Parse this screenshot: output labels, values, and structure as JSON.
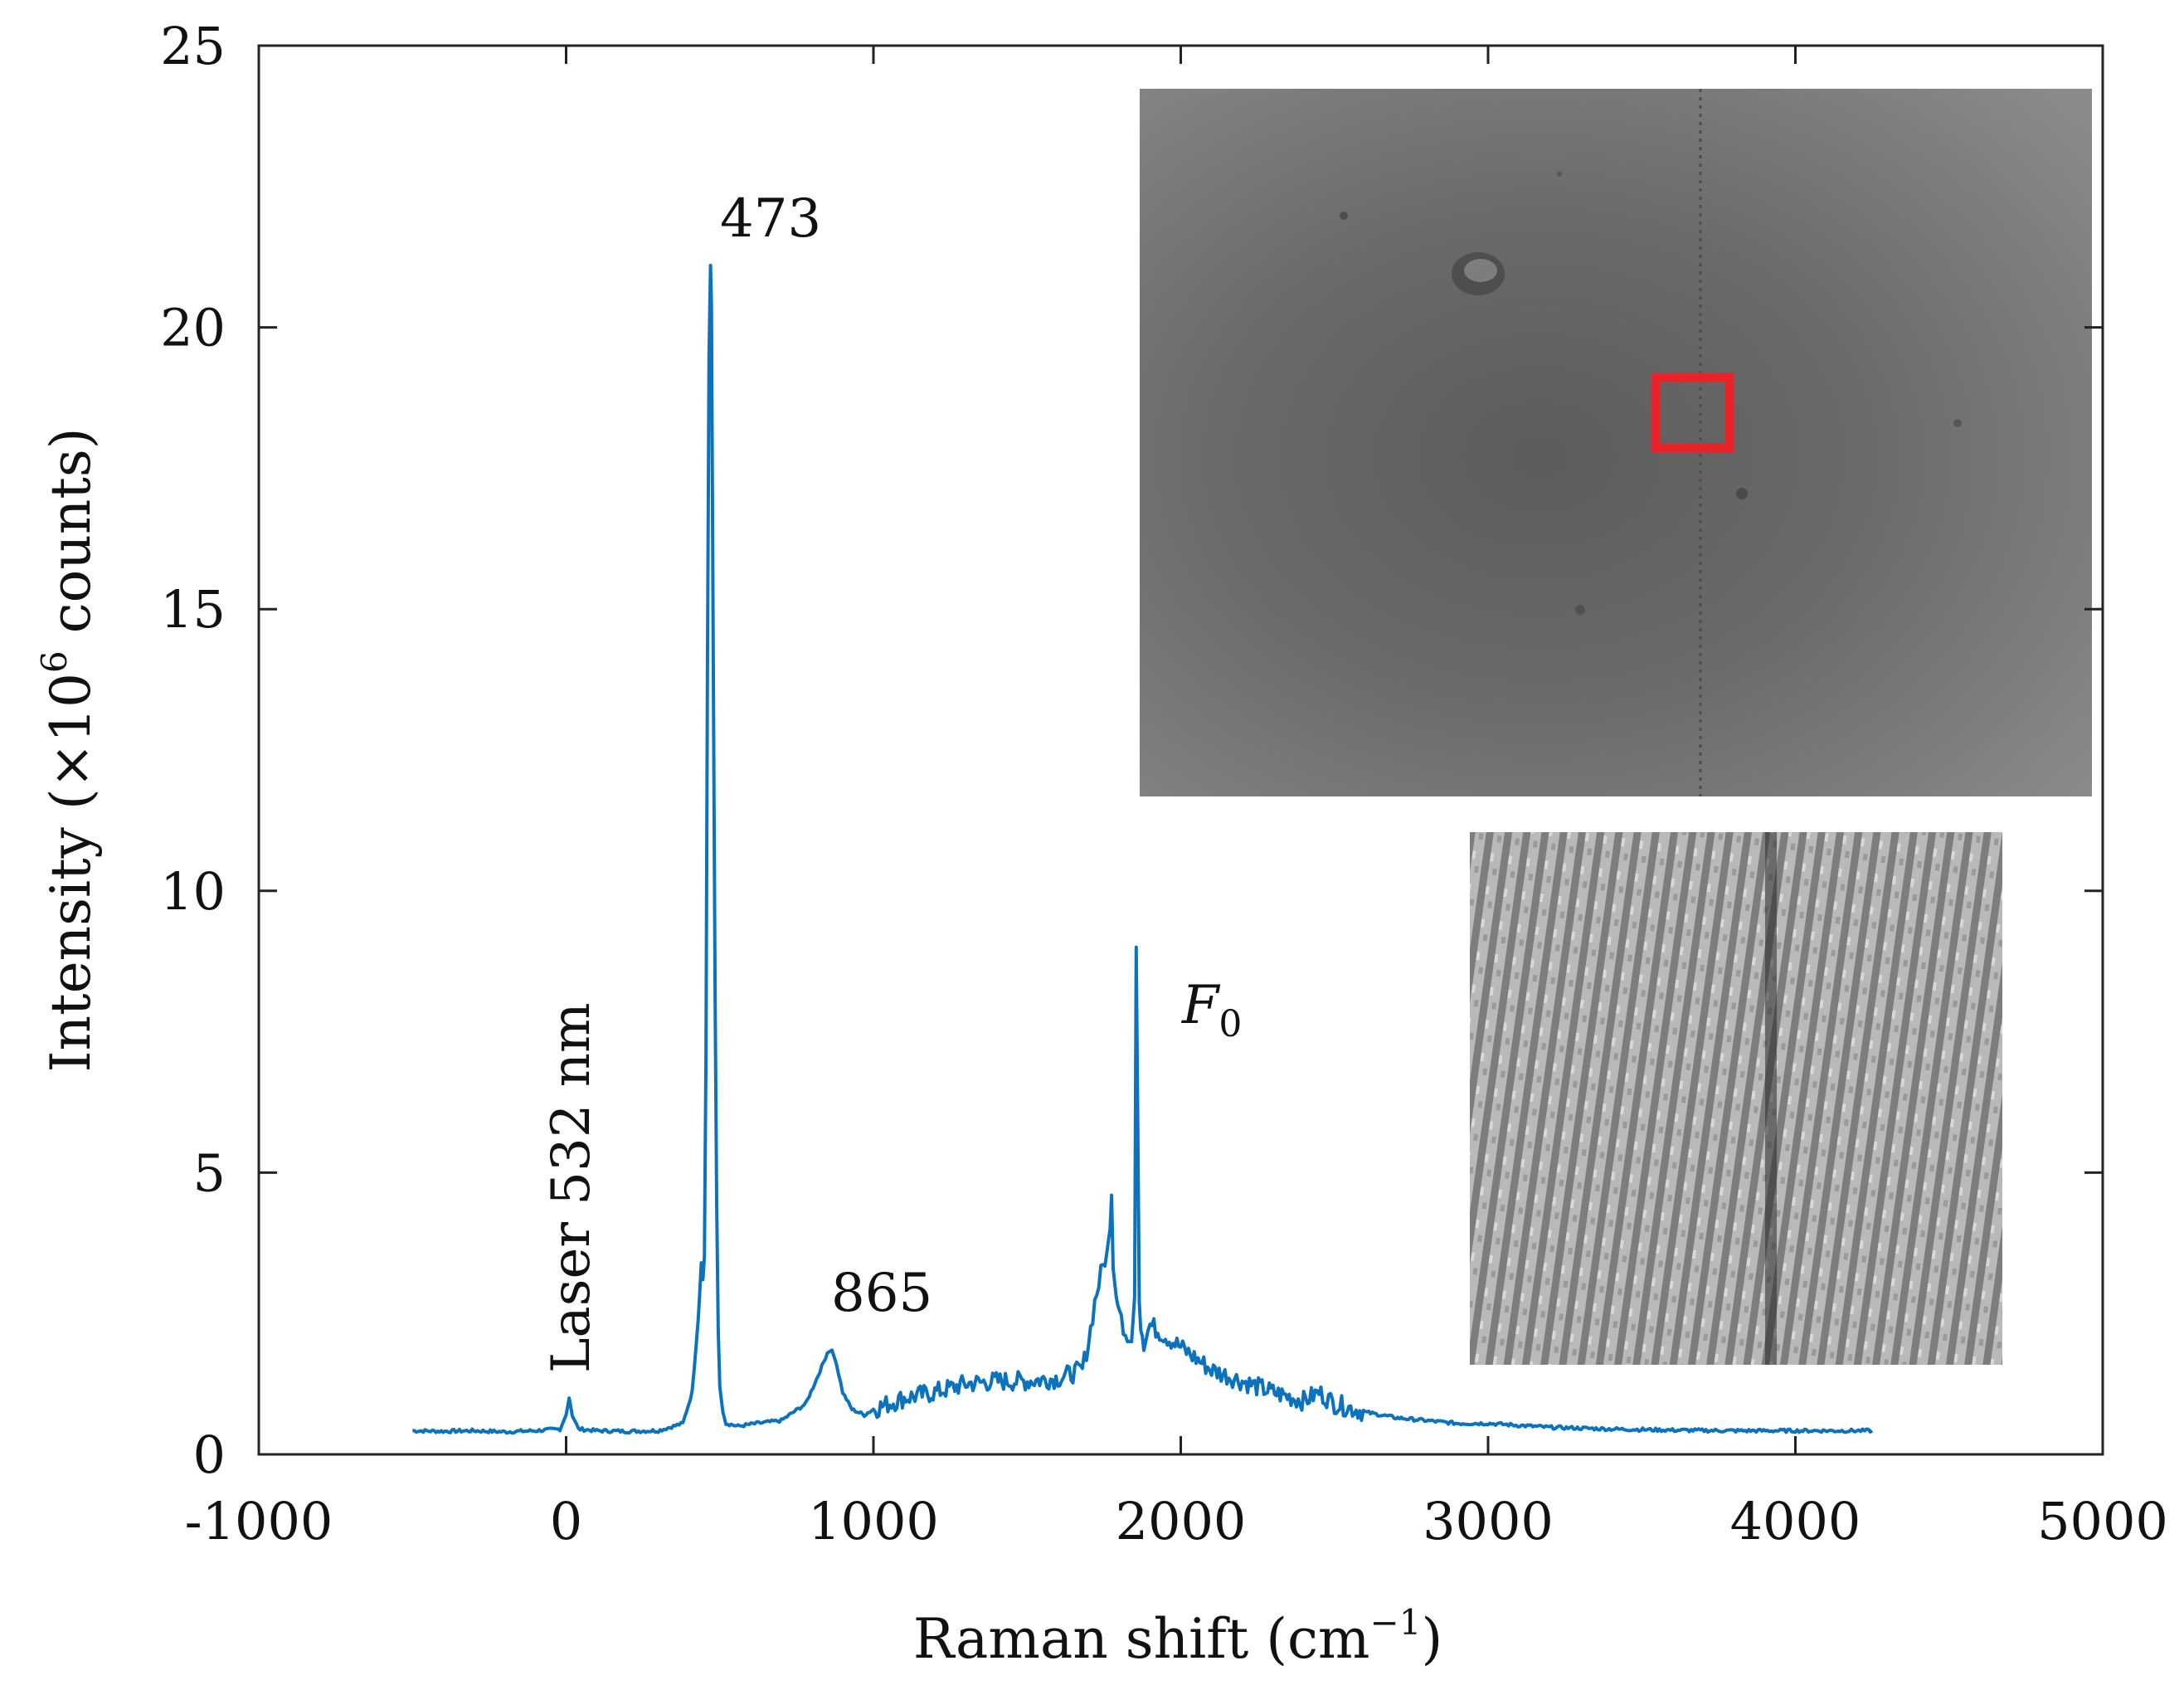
{
  "chart_data": {
    "type": "line",
    "xlabel": "Raman shift",
    "xlabel_unit": "(cm",
    "xlabel_exp": "−1",
    "xlabel_close": ")",
    "ylabel_pre": "Intensity (×10",
    "ylabel_exp": "6",
    "ylabel_post": " counts)",
    "xlim": [
      -1000,
      5000
    ],
    "ylim": [
      0,
      25
    ],
    "xticks": [
      -1000,
      0,
      1000,
      2000,
      3000,
      4000,
      5000
    ],
    "yticks": [
      0,
      5,
      10,
      15,
      20,
      25
    ],
    "grid": false,
    "color": "#0b72bd",
    "series": [
      {
        "x": [
          -500,
          -400,
          -300,
          -200,
          -100,
          -20,
          0,
          10,
          20,
          40,
          100,
          200,
          300,
          380,
          410,
          430,
          440,
          445,
          450,
          455,
          460,
          465,
          470,
          473,
          476,
          480,
          485,
          490,
          495,
          500,
          510,
          520,
          560,
          620,
          700,
          780,
          820,
          850,
          865,
          880,
          900,
          930,
          970,
          1000,
          1100,
          1200,
          1300,
          1400,
          1500,
          1600,
          1680,
          1700,
          1720,
          1740,
          1760,
          1770,
          1775,
          1780,
          1790,
          1800,
          1820,
          1840,
          1850,
          1855,
          1860,
          1865,
          1870,
          1880,
          1900,
          1950,
          2000,
          2050,
          2100,
          2150,
          2200,
          2300,
          2400,
          2450,
          2500,
          2600,
          2700,
          2800,
          2900,
          3000,
          3200,
          3400,
          3600,
          3800,
          4000,
          4200,
          4250
        ],
        "y": [
          0.42,
          0.41,
          0.42,
          0.4,
          0.42,
          0.45,
          0.7,
          1.0,
          0.7,
          0.45,
          0.42,
          0.41,
          0.42,
          0.55,
          1.1,
          2.4,
          3.4,
          3.1,
          3.5,
          7.0,
          14.0,
          19.5,
          21.1,
          20.4,
          17.0,
          13.0,
          8.0,
          4.5,
          2.2,
          1.2,
          0.75,
          0.55,
          0.5,
          0.55,
          0.6,
          0.9,
          1.4,
          1.8,
          1.85,
          1.6,
          1.1,
          0.8,
          0.7,
          0.8,
          1.0,
          1.1,
          1.25,
          1.3,
          1.3,
          1.35,
          1.5,
          2.0,
          2.7,
          3.2,
          3.6,
          4.0,
          4.6,
          3.3,
          2.8,
          2.5,
          2.2,
          2.0,
          2.8,
          9.0,
          6.0,
          2.7,
          2.2,
          2.0,
          2.3,
          2.1,
          1.9,
          1.7,
          1.5,
          1.4,
          1.3,
          1.1,
          0.95,
          1.1,
          0.9,
          0.75,
          0.65,
          0.6,
          0.55,
          0.55,
          0.48,
          0.45,
          0.43,
          0.42,
          0.42,
          0.42,
          0.42
        ]
      }
    ],
    "annotations": [
      {
        "text": "473",
        "x": 473,
        "y": 21.5
      },
      {
        "text": "865",
        "x": 865,
        "y": 2.6
      },
      {
        "text": "Laser 532 nm",
        "x": 0,
        "y": 1.5,
        "rotation": -90
      },
      {
        "text": "F",
        "subscript": "0",
        "x": 2000,
        "y": 7.6
      }
    ]
  },
  "inset_images": [
    {
      "description_name": "microscope-image",
      "highlight_color": "#e8232a"
    },
    {
      "description_name": "zoomed-lattice-image"
    }
  ]
}
